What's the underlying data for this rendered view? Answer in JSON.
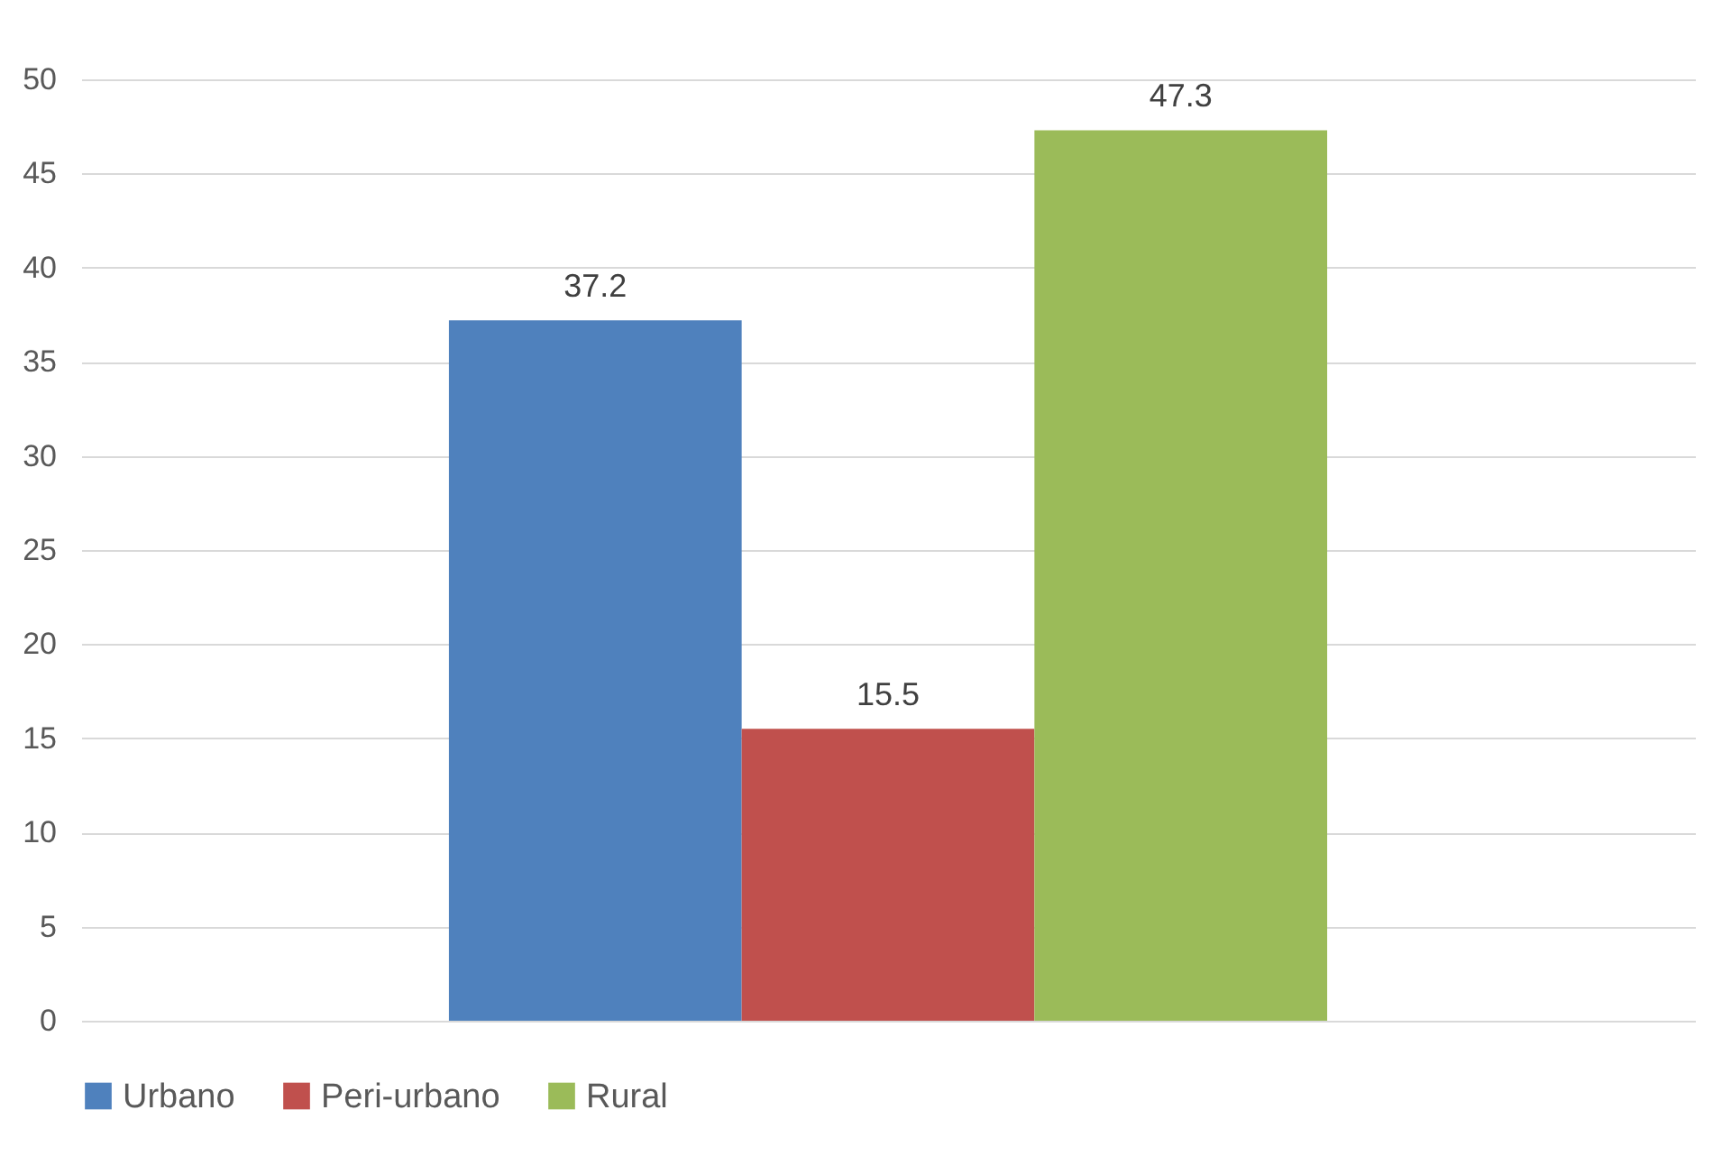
{
  "chart_data": {
    "type": "bar",
    "categories": [
      null
    ],
    "series": [
      {
        "name": "Urbano",
        "color": "#4f81bd",
        "values": [
          37.2
        ]
      },
      {
        "name": "Peri-urbano",
        "color": "#c0504d",
        "values": [
          15.5
        ]
      },
      {
        "name": "Rural",
        "color": "#9bbb59",
        "values": [
          47.3
        ]
      }
    ],
    "ylim": [
      0,
      50
    ],
    "yticks": [
      0,
      5,
      10,
      15,
      20,
      25,
      30,
      35,
      40,
      45,
      50
    ],
    "grid": "y",
    "legend": "bottom",
    "data_labels": true
  }
}
